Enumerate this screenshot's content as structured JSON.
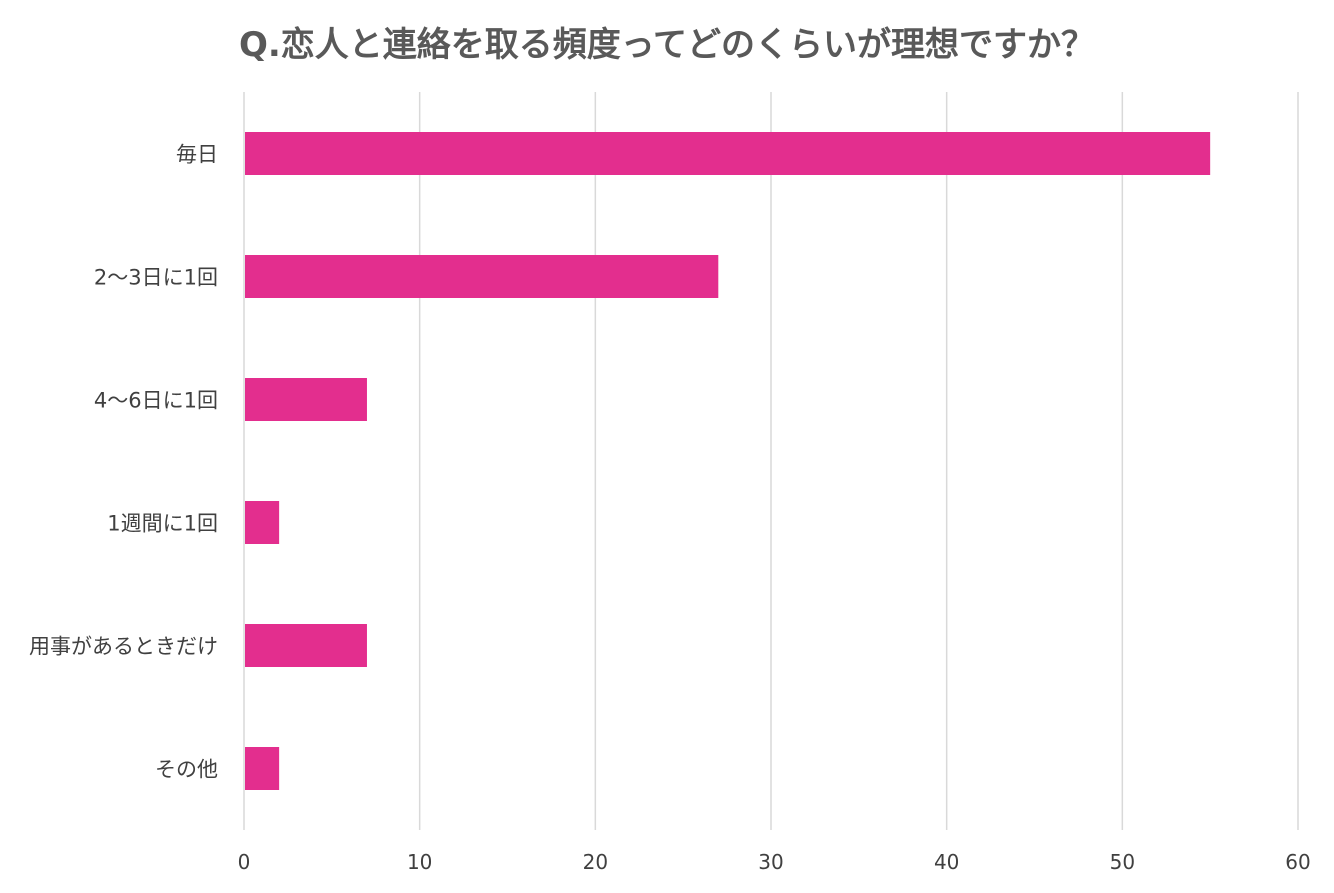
{
  "chart_data": {
    "type": "bar",
    "orientation": "horizontal",
    "title": "Q.恋人と連絡を取る頻度ってどのくらいが理想ですか？",
    "categories": [
      "毎日",
      "2〜3日に1回",
      "4〜6日に1回",
      "1週間に1回",
      "用事があるときだけ",
      "その他"
    ],
    "values": [
      55,
      27,
      7,
      2,
      7,
      2
    ],
    "xlim": [
      0,
      60
    ],
    "ticks": [
      "0",
      "10",
      "20",
      "30",
      "40",
      "50",
      "60"
    ],
    "grid": true,
    "legend": "none",
    "bar_color": "#E32E8E"
  }
}
